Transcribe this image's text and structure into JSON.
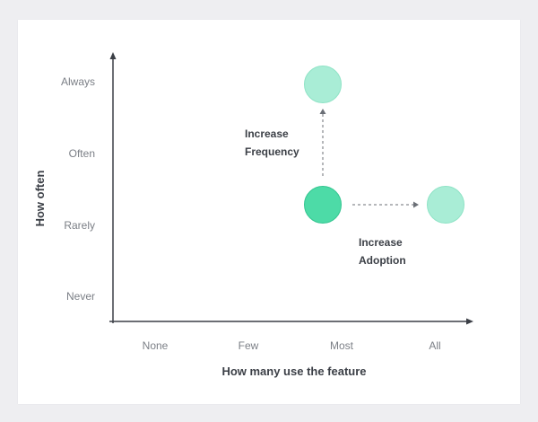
{
  "diagram": {
    "y_axis": {
      "title": "How often",
      "ticks": [
        "Never",
        "Rarely",
        "Often",
        "Always"
      ]
    },
    "x_axis": {
      "title": "How many use the feature",
      "ticks": [
        "None",
        "Few",
        "Most",
        "All"
      ]
    },
    "points": [
      {
        "name": "current",
        "x": "Most",
        "y": "Rarely",
        "fill": "#4ddba7",
        "stroke": "#34c590",
        "emphasis": "current"
      },
      {
        "name": "target-frequency",
        "x": "Most",
        "y": "Always",
        "fill": "#a9edd6",
        "stroke": "#8fe3c6",
        "emphasis": "target"
      },
      {
        "name": "target-adoption",
        "x": "All",
        "y": "Rarely",
        "fill": "#a9edd6",
        "stroke": "#8fe3c6",
        "emphasis": "target"
      }
    ],
    "annotations": {
      "frequency": [
        "Increase",
        "Frequency"
      ],
      "adoption": [
        "Increase",
        "Adoption"
      ]
    },
    "colors": {
      "axis": "#3b3f46",
      "arrow_dashed": "#6b6f76"
    }
  }
}
